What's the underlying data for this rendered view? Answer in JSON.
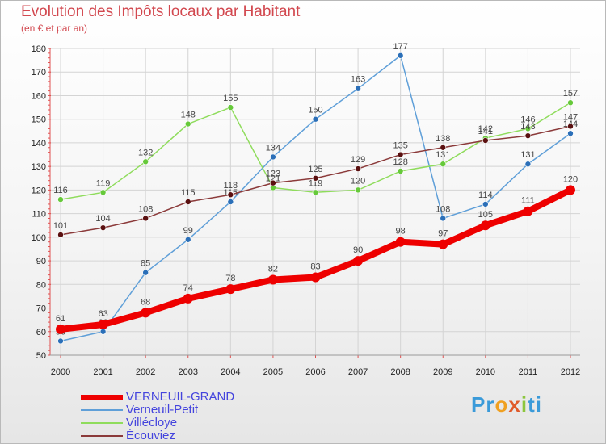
{
  "header": {
    "title": "Evolution des Impôts locaux par Habitant",
    "subtitle": "(en € et par an)"
  },
  "logo": {
    "text": "Proxiti"
  },
  "chart_data": {
    "type": "line",
    "title": "Evolution des Impôts locaux par Habitant",
    "subtitle": "(en € et par an)",
    "xlabel": "",
    "ylabel": "",
    "x": [
      "2000",
      "2001",
      "2002",
      "2003",
      "2004",
      "2005",
      "2006",
      "2007",
      "2008",
      "2009",
      "2010",
      "2011",
      "2012"
    ],
    "ylim": [
      50,
      180
    ],
    "yticks": [
      50,
      60,
      70,
      80,
      90,
      100,
      110,
      120,
      130,
      140,
      150,
      160,
      170,
      180
    ],
    "grid": true,
    "legend_position": "bottom-left",
    "series": [
      {
        "name": "Verneuil-Petit",
        "color": "#5f9fd8",
        "marker": "#2b6fb8",
        "values": [
          56,
          60,
          85,
          99,
          115,
          134,
          150,
          163,
          177,
          108,
          114,
          131,
          144
        ]
      },
      {
        "name": "Villécloye",
        "color": "#8fdc5c",
        "marker": "#66c93a",
        "values": [
          116,
          119,
          132,
          148,
          155,
          121,
          119,
          120,
          128,
          131,
          142,
          146,
          157
        ]
      },
      {
        "name": "Écouviez",
        "color": "#8b3a3a",
        "marker": "#5a1010",
        "values": [
          101,
          104,
          108,
          115,
          118,
          123,
          125,
          129,
          135,
          138,
          141,
          143,
          147
        ]
      },
      {
        "name": "VERNEUIL-GRAND",
        "color": "#ee0000",
        "marker": "#ee0000",
        "values": [
          61,
          63,
          68,
          74,
          78,
          82,
          83,
          90,
          98,
          97,
          105,
          111,
          120
        ]
      }
    ],
    "legend": [
      "VERNEUIL-GRAND",
      "Verneuil-Petit",
      "Villécloye",
      "Écouviez"
    ]
  }
}
